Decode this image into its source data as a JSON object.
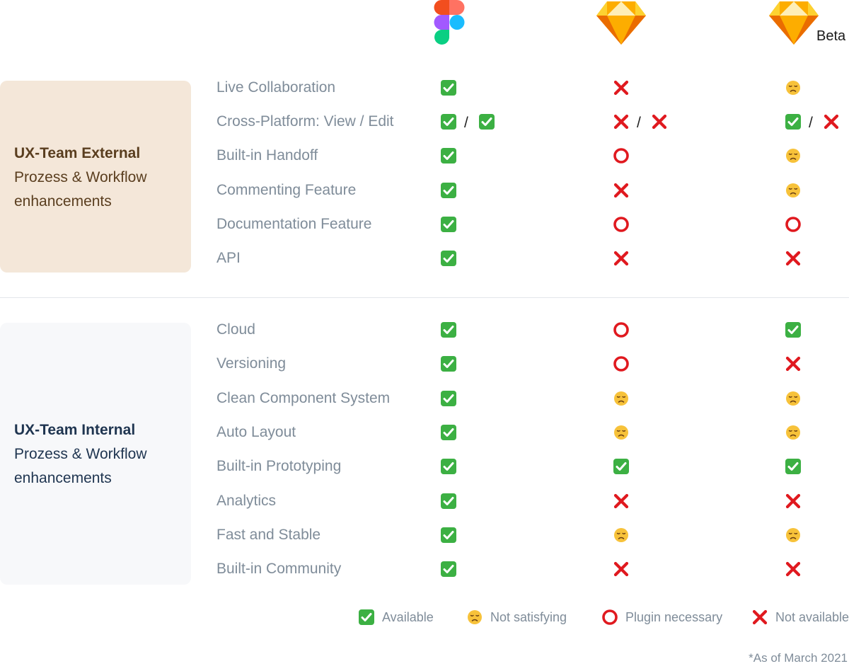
{
  "header": {
    "beta_label": "Beta"
  },
  "sections": [
    {
      "title": "UX-Team External",
      "subtitle": "Prozess & Workflow enhancements",
      "rows": [
        {
          "label": "Live Collaboration",
          "values": [
            [
              "available"
            ],
            [
              "not-available"
            ],
            [
              "not-satisfying"
            ]
          ]
        },
        {
          "label": "Cross-Platform: View / Edit",
          "values": [
            [
              "available",
              "available"
            ],
            [
              "not-available",
              "not-available"
            ],
            [
              "available",
              "not-available"
            ]
          ]
        },
        {
          "label": "Built-in Handoff",
          "values": [
            [
              "available"
            ],
            [
              "plugin-necessary"
            ],
            [
              "not-satisfying"
            ]
          ]
        },
        {
          "label": "Commenting Feature",
          "values": [
            [
              "available"
            ],
            [
              "not-available"
            ],
            [
              "not-satisfying"
            ]
          ]
        },
        {
          "label": "Documentation Feature",
          "values": [
            [
              "available"
            ],
            [
              "plugin-necessary"
            ],
            [
              "plugin-necessary"
            ]
          ]
        },
        {
          "label": "API",
          "values": [
            [
              "available"
            ],
            [
              "not-available"
            ],
            [
              "not-available"
            ]
          ]
        }
      ]
    },
    {
      "title": "UX-Team Internal",
      "subtitle": "Prozess & Workflow enhancements",
      "rows": [
        {
          "label": "Cloud",
          "values": [
            [
              "available"
            ],
            [
              "plugin-necessary"
            ],
            [
              "available"
            ]
          ]
        },
        {
          "label": "Versioning",
          "values": [
            [
              "available"
            ],
            [
              "plugin-necessary"
            ],
            [
              "not-available"
            ]
          ]
        },
        {
          "label": "Clean Component System",
          "values": [
            [
              "available"
            ],
            [
              "not-satisfying"
            ],
            [
              "not-satisfying"
            ]
          ]
        },
        {
          "label": "Auto Layout",
          "values": [
            [
              "available"
            ],
            [
              "not-satisfying"
            ],
            [
              "not-satisfying"
            ]
          ]
        },
        {
          "label": "Built-in Prototyping",
          "values": [
            [
              "available"
            ],
            [
              "available"
            ],
            [
              "available"
            ]
          ]
        },
        {
          "label": "Analytics",
          "values": [
            [
              "available"
            ],
            [
              "not-available"
            ],
            [
              "not-available"
            ]
          ]
        },
        {
          "label": "Fast and Stable",
          "values": [
            [
              "available"
            ],
            [
              "not-satisfying"
            ],
            [
              "not-satisfying"
            ]
          ]
        },
        {
          "label": "Built-in Community",
          "values": [
            [
              "available"
            ],
            [
              "not-available"
            ],
            [
              "not-available"
            ]
          ]
        }
      ]
    }
  ],
  "legend": [
    {
      "icon": "available",
      "label": "Available"
    },
    {
      "icon": "not-satisfying",
      "label": "Not satisfying"
    },
    {
      "icon": "plugin-necessary",
      "label": "Plugin necessary"
    },
    {
      "icon": "not-available",
      "label": "Not available"
    }
  ],
  "footnote": "*As of March 2021",
  "colors": {
    "check_green": "#3cb043",
    "cross_red": "#e0191f",
    "circle_red": "#e0191f",
    "face_yellow": "#f7c23a",
    "external_box": "#f4e7d9",
    "internal_box": "#f7f8fa",
    "label_gray": "#7f8c99"
  }
}
